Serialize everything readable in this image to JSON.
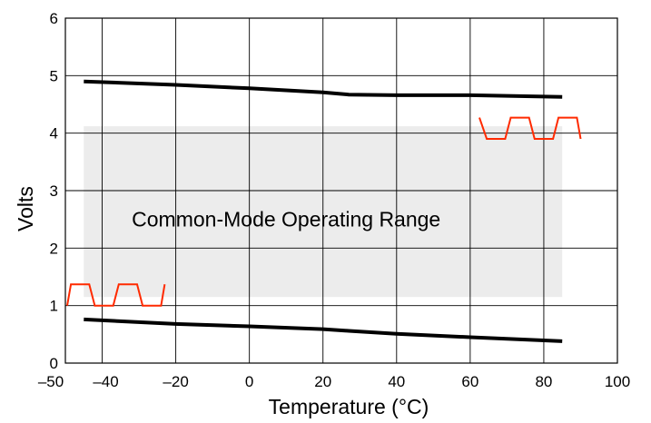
{
  "chart_data": {
    "type": "line",
    "title": "",
    "xlabel": "Temperature (°C)",
    "ylabel": "Volts",
    "xlim": [
      -50,
      100
    ],
    "ylim": [
      0,
      6
    ],
    "x_ticks": [
      -50,
      -40,
      -20,
      0,
      20,
      40,
      60,
      80,
      100
    ],
    "x_tick_labels": [
      "–50",
      "–40",
      "–20",
      "0",
      "20",
      "40",
      "60",
      "80",
      "100"
    ],
    "y_ticks": [
      0,
      1,
      2,
      3,
      4,
      5,
      6
    ],
    "y_tick_labels": [
      "0",
      "1",
      "2",
      "3",
      "4",
      "5",
      "6"
    ],
    "grid": true,
    "legend": "none",
    "shaded_region": {
      "label": "Common-Mode Operating Range",
      "x": [
        -45,
        85
      ],
      "y": [
        1.15,
        4.12
      ],
      "color": "#ececec"
    },
    "series": [
      {
        "color": "#000000",
        "x": [
          -45,
          -20,
          0,
          20,
          27,
          40,
          60,
          85
        ],
        "y": [
          4.9,
          4.84,
          4.78,
          4.71,
          4.67,
          4.66,
          4.66,
          4.63
        ]
      },
      {
        "color": "#000000",
        "x": [
          -45,
          -20,
          0,
          20,
          27,
          40,
          60,
          85
        ],
        "y": [
          0.76,
          0.68,
          0.64,
          0.59,
          0.56,
          0.51,
          0.45,
          0.38
        ]
      }
    ],
    "waveforms": [
      {
        "position": "upper-right",
        "color": "#ff2a00",
        "x": [
          63.5,
          64.5,
          69.5,
          71,
          76,
          77.5,
          82.5,
          84,
          89
        ],
        "low": 3.9,
        "high": 4.27
      },
      {
        "position": "lower-left",
        "color": "#ff2a00",
        "x": [
          -49.5,
          -48.5,
          -43.5,
          -42,
          -37,
          -35.5,
          -30.5,
          -29,
          -24
        ],
        "low": 1.0,
        "high": 1.37
      }
    ]
  }
}
